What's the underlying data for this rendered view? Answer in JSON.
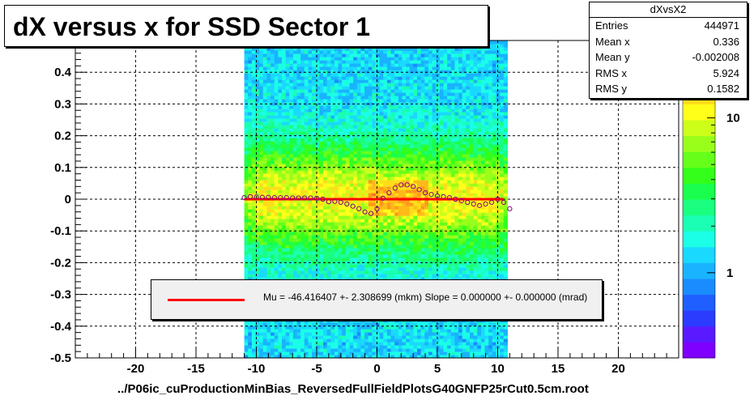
{
  "title": "dX versus  x for SSD Sector 1",
  "x_axis_title": "../P06ic_cuProductionMinBias_ReversedFullFieldPlotsG40GNFP25rCut0.5cm.root",
  "stats": {
    "name": "dXvsX2",
    "rows": [
      {
        "key": "Entries",
        "value": "444971"
      },
      {
        "key": "Mean x",
        "value": "0.336"
      },
      {
        "key": "Mean y",
        "value": "-0.002008"
      },
      {
        "key": "RMS x",
        "value": "5.924"
      },
      {
        "key": "RMS y",
        "value": "0.1582"
      }
    ]
  },
  "legend": {
    "text": "Mu = -46.416407 +- 2.308699 (mkm) Slope = 0.000000 +- 0.000000 (mrad)",
    "line_color": "#ff0000"
  },
  "colors": {
    "fit_line": "#ff0000",
    "profile_marker": "#800080",
    "grid": "#000000"
  },
  "chart_data": {
    "type": "heatmap",
    "title": "dX versus  x for SSD Sector 1",
    "xlabel": "../P06ic_cuProductionMinBias_ReversedFullFieldPlotsG40GNFP25rCut0.5cm.root",
    "ylabel": "",
    "xlim": [
      -25,
      25
    ],
    "ylim": [
      -0.5,
      0.5
    ],
    "x_ticks": [
      -20,
      -15,
      -10,
      -5,
      0,
      5,
      10,
      15,
      20
    ],
    "y_ticks": [
      -0.5,
      -0.4,
      -0.3,
      -0.2,
      -0.1,
      0,
      0.1,
      0.2,
      0.3,
      0.4
    ],
    "y_tick_labels": [
      "-0.5",
      "-0.4",
      "-0.3",
      "-0.2",
      "-0.1",
      "0",
      "0.1",
      "0.2",
      "0.3",
      "0.4"
    ],
    "x_tick_labels": [
      "-20",
      "-15",
      "-10",
      "-5",
      "0",
      "5",
      "10",
      "15",
      "20"
    ],
    "grid": true,
    "z_scale": "log",
    "z_tick_labels": [
      "1",
      "10"
    ],
    "z_ticks": [
      1,
      10
    ],
    "populated_x_range": [
      -11,
      10.8
    ],
    "fit_line": {
      "mu": -0.0464,
      "slope": 0.0,
      "x_range": [
        -11,
        10.5
      ]
    },
    "profile_points": {
      "x": [
        -11.0,
        -10.5,
        -10.0,
        -9.5,
        -9.0,
        -8.5,
        -8.0,
        -7.5,
        -7.0,
        -6.5,
        -6.0,
        -5.5,
        -5.0,
        -4.5,
        -4.0,
        -3.5,
        -3.0,
        -2.5,
        -2.0,
        -1.5,
        -1.0,
        -0.5,
        0.0,
        0.5,
        1.0,
        1.5,
        2.0,
        2.5,
        3.0,
        3.5,
        4.0,
        4.5,
        5.0,
        5.5,
        6.0,
        6.5,
        7.0,
        7.5,
        8.0,
        8.5,
        9.0,
        9.5,
        10.0,
        10.5,
        11.0
      ],
      "y": [
        0.005,
        0.008,
        0.007,
        0.006,
        0.006,
        0.005,
        0.005,
        0.005,
        0.004,
        0.004,
        0.004,
        0.004,
        0.003,
        0.0,
        -0.008,
        -0.007,
        -0.01,
        -0.015,
        -0.022,
        -0.03,
        -0.04,
        -0.045,
        -0.03,
        0.003,
        0.02,
        0.035,
        0.045,
        0.045,
        0.04,
        0.03,
        0.02,
        0.015,
        0.01,
        0.008,
        0.005,
        0.0,
        -0.005,
        -0.01,
        -0.015,
        -0.02,
        -0.015,
        -0.01,
        0.0,
        -0.01,
        -0.03
      ]
    }
  }
}
